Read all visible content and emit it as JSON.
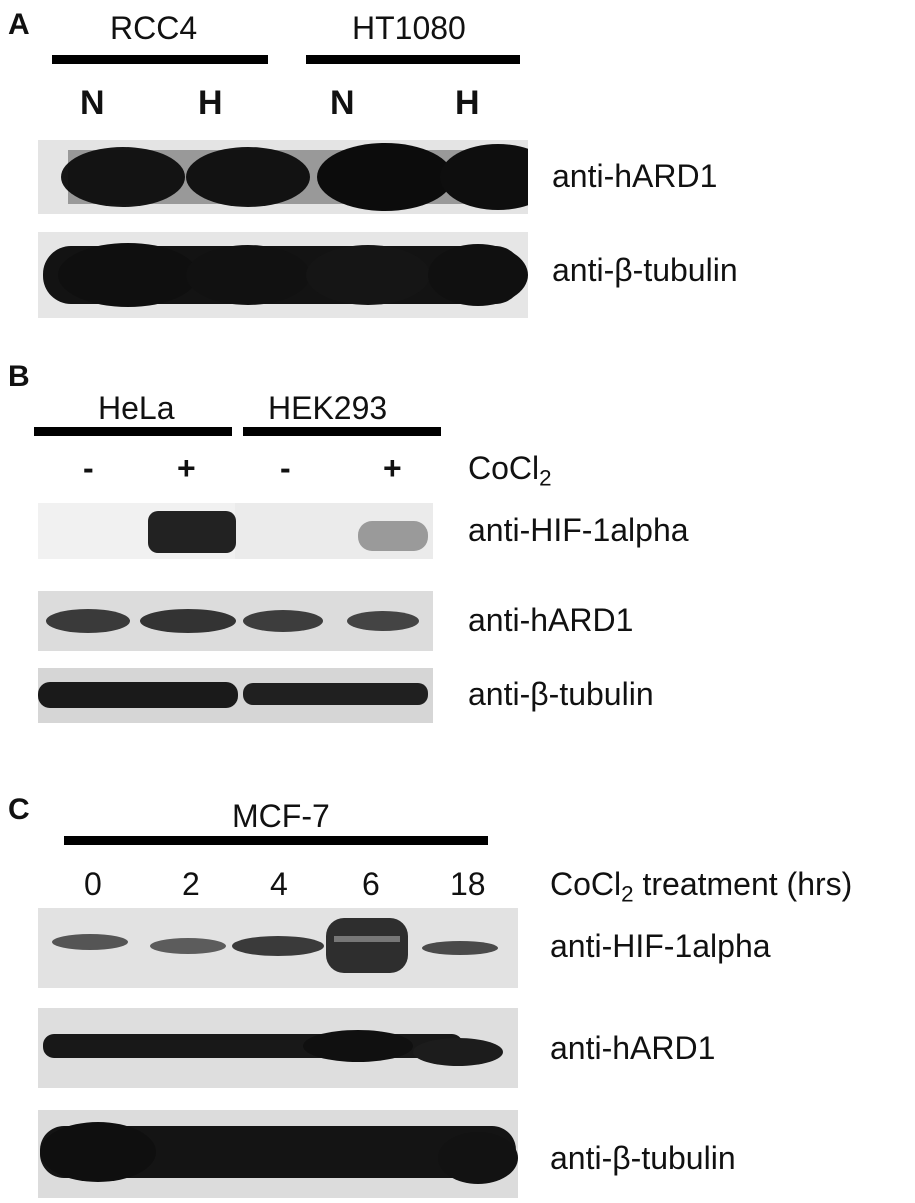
{
  "panel_a": {
    "letter": "A",
    "groups": [
      "RCC4",
      "HT1080"
    ],
    "conditions": [
      "N",
      "H",
      "N",
      "H"
    ],
    "blots": [
      "anti-hARD1",
      "anti-β-tubulin"
    ]
  },
  "panel_b": {
    "letter": "B",
    "groups": [
      "HeLa",
      "HEK293"
    ],
    "signs": [
      "-",
      "+",
      "-",
      "+"
    ],
    "treatment": {
      "base": "CoCl",
      "sub": "2"
    },
    "blots": [
      "anti-HIF-1alpha",
      "anti-hARD1",
      "anti-β-tubulin"
    ]
  },
  "panel_c": {
    "letter": "C",
    "group": "MCF-7",
    "times": [
      "0",
      "2",
      "4",
      "6",
      "18"
    ],
    "treatment": {
      "base": "CoCl",
      "sub": "2",
      "rest": " treatment (hrs)"
    },
    "blots": [
      "anti-HIF-1alpha",
      "anti-hARD1",
      "anti-β-tubulin"
    ]
  }
}
